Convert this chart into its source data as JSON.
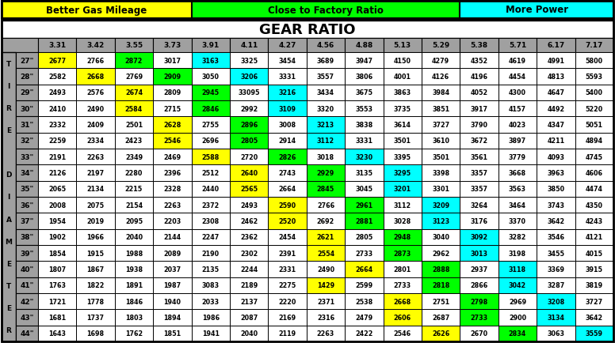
{
  "header_labels": [
    "Better Gas Mileage",
    "Close to Factory Ratio",
    "More Power"
  ],
  "header_colors": [
    "#FFFF00",
    "#00FF00",
    "#00FFFF"
  ],
  "title": "GEAR RATIO",
  "col_headers": [
    "3.31",
    "3.42",
    "3.55",
    "3.73",
    "3.91",
    "4.11",
    "4.27",
    "4.56",
    "4.88",
    "5.13",
    "5.29",
    "5.38",
    "5.71",
    "6.17",
    "7.17"
  ],
  "row_headers": [
    "27\"",
    "28\"",
    "29\"",
    "30\"",
    "31\"",
    "32\"",
    "33\"",
    "34\"",
    "35\"",
    "36\"",
    "37\"",
    "38\"",
    "39\"",
    "40\"",
    "41\"",
    "42\"",
    "43\"",
    "44\""
  ],
  "side_label_chars": [
    "T",
    "I",
    "R",
    "E",
    " ",
    "D",
    "I",
    "A",
    "M",
    "E",
    "T",
    "E",
    "R"
  ],
  "table_data": [
    [
      2677,
      2766,
      2872,
      3017,
      3163,
      3325,
      3454,
      3689,
      3947,
      4150,
      4279,
      4352,
      4619,
      4991,
      5800
    ],
    [
      2582,
      2668,
      2769,
      2909,
      3050,
      3206,
      3331,
      3557,
      3806,
      4001,
      4126,
      4196,
      4454,
      4813,
      5593
    ],
    [
      2493,
      2576,
      2674,
      2809,
      2945,
      33095,
      3216,
      3434,
      3675,
      3863,
      3984,
      4052,
      4300,
      4647,
      5400
    ],
    [
      2410,
      2490,
      2584,
      2715,
      2846,
      2992,
      3109,
      3320,
      3553,
      3735,
      3851,
      3917,
      4157,
      4492,
      5220
    ],
    [
      2332,
      2409,
      2501,
      2628,
      2755,
      2896,
      3008,
      3213,
      3838,
      3614,
      3727,
      3790,
      4023,
      4347,
      5051
    ],
    [
      2259,
      2334,
      2423,
      2546,
      2696,
      2805,
      2914,
      3112,
      3331,
      3501,
      3610,
      3672,
      3897,
      4211,
      4894
    ],
    [
      2191,
      2263,
      2349,
      2469,
      2588,
      2720,
      2826,
      3018,
      3230,
      3395,
      3501,
      3561,
      3779,
      4093,
      4745
    ],
    [
      2126,
      2197,
      2280,
      2396,
      2512,
      2640,
      2743,
      2929,
      3135,
      3295,
      3398,
      3357,
      3668,
      3963,
      4606
    ],
    [
      2065,
      2134,
      2215,
      2328,
      2440,
      2565,
      2664,
      2845,
      3045,
      3201,
      3301,
      3357,
      3563,
      3850,
      4474
    ],
    [
      2008,
      2075,
      2154,
      2263,
      2372,
      2493,
      2590,
      2766,
      2961,
      3112,
      3209,
      3264,
      3464,
      3743,
      4350
    ],
    [
      1954,
      2019,
      2095,
      2203,
      2308,
      2462,
      2520,
      2692,
      2881,
      3028,
      3123,
      3176,
      3370,
      3642,
      4243
    ],
    [
      1902,
      1966,
      2040,
      2144,
      2247,
      2362,
      2454,
      2621,
      2805,
      2948,
      3040,
      3092,
      3282,
      3546,
      4121
    ],
    [
      1854,
      1915,
      1988,
      2089,
      2190,
      2302,
      2391,
      2554,
      2733,
      2873,
      2962,
      3013,
      3198,
      3455,
      4015
    ],
    [
      1807,
      1867,
      1938,
      2037,
      2135,
      2244,
      2331,
      2490,
      2664,
      2801,
      2888,
      2937,
      3118,
      3369,
      3915
    ],
    [
      1763,
      1822,
      1891,
      1987,
      3083,
      2189,
      2275,
      1429,
      2599,
      2733,
      2818,
      2866,
      3042,
      3287,
      3819
    ],
    [
      1721,
      1778,
      1846,
      1940,
      2033,
      2137,
      2220,
      2371,
      2538,
      2668,
      2751,
      2798,
      2969,
      3208,
      3727
    ],
    [
      1681,
      1737,
      1803,
      1894,
      1986,
      2087,
      2169,
      2316,
      2479,
      2606,
      2687,
      2733,
      2900,
      3134,
      3642
    ],
    [
      1643,
      1698,
      1762,
      1851,
      1941,
      2040,
      2119,
      2263,
      2422,
      2546,
      2626,
      2670,
      2834,
      3063,
      3559
    ]
  ],
  "cell_colors": [
    [
      "#FFFF00",
      "#FFFFFF",
      "#00FF00",
      "#FFFFFF",
      "#00FFFF",
      "#FFFFFF",
      "#FFFFFF",
      "#FFFFFF",
      "#FFFFFF",
      "#FFFFFF",
      "#FFFFFF",
      "#FFFFFF",
      "#FFFFFF",
      "#FFFFFF",
      "#FFFFFF"
    ],
    [
      "#FFFFFF",
      "#FFFF00",
      "#FFFFFF",
      "#00FF00",
      "#FFFFFF",
      "#00FFFF",
      "#FFFFFF",
      "#FFFFFF",
      "#FFFFFF",
      "#FFFFFF",
      "#FFFFFF",
      "#FFFFFF",
      "#FFFFFF",
      "#FFFFFF",
      "#FFFFFF"
    ],
    [
      "#FFFFFF",
      "#FFFFFF",
      "#FFFF00",
      "#FFFFFF",
      "#00FF00",
      "#FFFFFF",
      "#00FFFF",
      "#FFFFFF",
      "#FFFFFF",
      "#FFFFFF",
      "#FFFFFF",
      "#FFFFFF",
      "#FFFFFF",
      "#FFFFFF",
      "#FFFFFF"
    ],
    [
      "#FFFFFF",
      "#FFFFFF",
      "#FFFF00",
      "#FFFFFF",
      "#00FF00",
      "#FFFFFF",
      "#00FFFF",
      "#FFFFFF",
      "#FFFFFF",
      "#FFFFFF",
      "#FFFFFF",
      "#FFFFFF",
      "#FFFFFF",
      "#FFFFFF",
      "#FFFFFF"
    ],
    [
      "#FFFFFF",
      "#FFFFFF",
      "#FFFFFF",
      "#FFFF00",
      "#FFFFFF",
      "#00FF00",
      "#FFFFFF",
      "#00FFFF",
      "#FFFFFF",
      "#FFFFFF",
      "#FFFFFF",
      "#FFFFFF",
      "#FFFFFF",
      "#FFFFFF",
      "#FFFFFF"
    ],
    [
      "#FFFFFF",
      "#FFFFFF",
      "#FFFFFF",
      "#FFFF00",
      "#FFFFFF",
      "#00FF00",
      "#FFFFFF",
      "#00FFFF",
      "#FFFFFF",
      "#FFFFFF",
      "#FFFFFF",
      "#FFFFFF",
      "#FFFFFF",
      "#FFFFFF",
      "#FFFFFF"
    ],
    [
      "#FFFFFF",
      "#FFFFFF",
      "#FFFFFF",
      "#FFFFFF",
      "#FFFF00",
      "#FFFFFF",
      "#00FF00",
      "#FFFFFF",
      "#00FFFF",
      "#FFFFFF",
      "#FFFFFF",
      "#FFFFFF",
      "#FFFFFF",
      "#FFFFFF",
      "#FFFFFF"
    ],
    [
      "#FFFFFF",
      "#FFFFFF",
      "#FFFFFF",
      "#FFFFFF",
      "#FFFFFF",
      "#FFFF00",
      "#FFFFFF",
      "#00FF00",
      "#FFFFFF",
      "#00FFFF",
      "#FFFFFF",
      "#FFFFFF",
      "#FFFFFF",
      "#FFFFFF",
      "#FFFFFF"
    ],
    [
      "#FFFFFF",
      "#FFFFFF",
      "#FFFFFF",
      "#FFFFFF",
      "#FFFFFF",
      "#FFFF00",
      "#FFFFFF",
      "#00FF00",
      "#FFFFFF",
      "#00FFFF",
      "#FFFFFF",
      "#FFFFFF",
      "#FFFFFF",
      "#FFFFFF",
      "#FFFFFF"
    ],
    [
      "#FFFFFF",
      "#FFFFFF",
      "#FFFFFF",
      "#FFFFFF",
      "#FFFFFF",
      "#FFFFFF",
      "#FFFF00",
      "#FFFFFF",
      "#00FF00",
      "#FFFFFF",
      "#00FFFF",
      "#FFFFFF",
      "#FFFFFF",
      "#FFFFFF",
      "#FFFFFF"
    ],
    [
      "#FFFFFF",
      "#FFFFFF",
      "#FFFFFF",
      "#FFFFFF",
      "#FFFFFF",
      "#FFFFFF",
      "#FFFF00",
      "#FFFFFF",
      "#00FF00",
      "#FFFFFF",
      "#00FFFF",
      "#FFFFFF",
      "#FFFFFF",
      "#FFFFFF",
      "#FFFFFF"
    ],
    [
      "#FFFFFF",
      "#FFFFFF",
      "#FFFFFF",
      "#FFFFFF",
      "#FFFFFF",
      "#FFFFFF",
      "#FFFFFF",
      "#FFFF00",
      "#FFFFFF",
      "#00FF00",
      "#FFFFFF",
      "#00FFFF",
      "#FFFFFF",
      "#FFFFFF",
      "#FFFFFF"
    ],
    [
      "#FFFFFF",
      "#FFFFFF",
      "#FFFFFF",
      "#FFFFFF",
      "#FFFFFF",
      "#FFFFFF",
      "#FFFFFF",
      "#FFFF00",
      "#FFFFFF",
      "#00FF00",
      "#FFFFFF",
      "#00FFFF",
      "#FFFFFF",
      "#FFFFFF",
      "#FFFFFF"
    ],
    [
      "#FFFFFF",
      "#FFFFFF",
      "#FFFFFF",
      "#FFFFFF",
      "#FFFFFF",
      "#FFFFFF",
      "#FFFFFF",
      "#FFFFFF",
      "#FFFF00",
      "#FFFFFF",
      "#00FF00",
      "#FFFFFF",
      "#00FFFF",
      "#FFFFFF",
      "#FFFFFF"
    ],
    [
      "#FFFFFF",
      "#FFFFFF",
      "#FFFFFF",
      "#FFFFFF",
      "#FFFFFF",
      "#FFFFFF",
      "#FFFFFF",
      "#FFFF00",
      "#FFFFFF",
      "#FFFFFF",
      "#00FF00",
      "#FFFFFF",
      "#00FFFF",
      "#FFFFFF",
      "#FFFFFF"
    ],
    [
      "#FFFFFF",
      "#FFFFFF",
      "#FFFFFF",
      "#FFFFFF",
      "#FFFFFF",
      "#FFFFFF",
      "#FFFFFF",
      "#FFFFFF",
      "#FFFFFF",
      "#FFFF00",
      "#FFFFFF",
      "#00FF00",
      "#FFFFFF",
      "#00FFFF",
      "#FFFFFF"
    ],
    [
      "#FFFFFF",
      "#FFFFFF",
      "#FFFFFF",
      "#FFFFFF",
      "#FFFFFF",
      "#FFFFFF",
      "#FFFFFF",
      "#FFFFFF",
      "#FFFFFF",
      "#FFFF00",
      "#FFFFFF",
      "#00FF00",
      "#FFFFFF",
      "#00FFFF",
      "#FFFFFF"
    ],
    [
      "#FFFFFF",
      "#FFFFFF",
      "#FFFFFF",
      "#FFFFFF",
      "#FFFFFF",
      "#FFFFFF",
      "#FFFFFF",
      "#FFFFFF",
      "#FFFFFF",
      "#FFFFFF",
      "#FFFF00",
      "#FFFFFF",
      "#00FF00",
      "#FFFFFF",
      "#00FFFF"
    ]
  ],
  "header_span_cols": [
    4,
    7,
    4
  ],
  "gray": "#A0A0A0",
  "white": "#FFFFFF",
  "black": "#000000"
}
